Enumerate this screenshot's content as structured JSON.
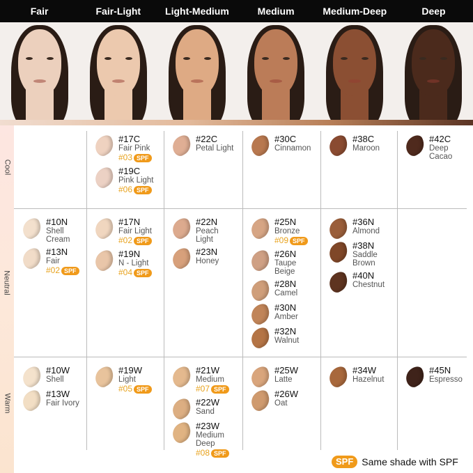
{
  "header": {
    "tones": [
      {
        "label": "Fair",
        "skin": "#ecd0bd"
      },
      {
        "label": "Fair-Light",
        "skin": "#ecc9ae"
      },
      {
        "label": "Light-Medium",
        "skin": "#deaa84"
      },
      {
        "label": "Medium",
        "skin": "#bb7c58"
      },
      {
        "label": "Medium-Deep",
        "skin": "#8b4f33"
      },
      {
        "label": "Deep",
        "skin": "#4b2a1c"
      }
    ]
  },
  "rows": [
    {
      "label": "Cool",
      "cells": [
        [],
        [
          {
            "code": "#17C",
            "name": "Fair Pink",
            "spf": "#03",
            "color": "#efd2c0"
          },
          {
            "code": "#19C",
            "name": "Pink Light",
            "spf": "#06",
            "color": "#ecd1c4"
          }
        ],
        [
          {
            "code": "#22C",
            "name": "Petal Light",
            "color": "#dfae94"
          }
        ],
        [
          {
            "code": "#30C",
            "name": "Cinnamon",
            "color": "#b8784f"
          }
        ],
        [
          {
            "code": "#38C",
            "name": "Maroon",
            "color": "#8a4b31"
          }
        ],
        [
          {
            "code": "#42C",
            "name": "Deep\nCacao",
            "color": "#4f2a1d"
          }
        ]
      ]
    },
    {
      "label": "Neutral",
      "cells": [
        [
          {
            "code": "#10N",
            "name": "Shell\nCream",
            "color": "#f3e0cd"
          },
          {
            "code": "#13N",
            "name": "Fair",
            "spf": "#02",
            "color": "#f1dcc8"
          }
        ],
        [
          {
            "code": "#17N",
            "name": "Fair Light",
            "spf": "#02",
            "color": "#f0d6bf"
          },
          {
            "code": "#19N",
            "name": "N - Light",
            "spf": "#04",
            "color": "#e9c6a9"
          }
        ],
        [
          {
            "code": "#22N",
            "name": "Peach\nLight",
            "color": "#dcaa8e"
          },
          {
            "code": "#23N",
            "name": "Honey",
            "color": "#d7a07b"
          }
        ],
        [
          {
            "code": "#25N",
            "name": "Bronze",
            "spf": "#09",
            "color": "#d6a584"
          },
          {
            "code": "#26N",
            "name": "Taupe\nBeige",
            "color": "#cfa084"
          },
          {
            "code": "#28N",
            "name": "Camel",
            "color": "#cf9e7a"
          },
          {
            "code": "#30N",
            "name": "Amber",
            "color": "#c08458"
          },
          {
            "code": "#32N",
            "name": "Walnut",
            "color": "#b47445"
          }
        ],
        [
          {
            "code": "#36N",
            "name": "Almond",
            "color": "#9a5e3a"
          },
          {
            "code": "#38N",
            "name": "Saddle\nBrown",
            "color": "#7f4728"
          },
          {
            "code": "#40N",
            "name": "Chestnut",
            "color": "#5e3420"
          }
        ],
        []
      ]
    },
    {
      "label": "Warm",
      "cells": [
        [
          {
            "code": "#10W",
            "name": "Shell",
            "color": "#f4e2cc"
          },
          {
            "code": "#13W",
            "name": "Fair Ivory",
            "color": "#f2dec4"
          }
        ],
        [
          {
            "code": "#19W",
            "name": "Light",
            "spf": "#05",
            "color": "#e8c39c"
          }
        ],
        [
          {
            "code": "#21W",
            "name": "Medium",
            "spf": "#07",
            "color": "#e4b98e"
          },
          {
            "code": "#22W",
            "name": "Sand",
            "color": "#dcae82"
          },
          {
            "code": "#23W",
            "name": "Medium\nDeep",
            "spf": "#08",
            "color": "#e0b382"
          }
        ],
        [
          {
            "code": "#25W",
            "name": "Latte",
            "color": "#d9a57c"
          },
          {
            "code": "#26W",
            "name": "Oat",
            "color": "#cf9a6e"
          }
        ],
        [
          {
            "code": "#34W",
            "name": "Hazelnut",
            "color": "#a8683c"
          }
        ],
        [
          {
            "code": "#45N",
            "name": "Espresso",
            "color": "#3f231a"
          }
        ]
      ]
    }
  ],
  "spf_badge": "SPF",
  "legend": {
    "badge": "SPF",
    "text": "Same shade with SPF"
  },
  "colors": {
    "spf_accent": "#f09a1a",
    "spf_text": "#e8a31e"
  }
}
